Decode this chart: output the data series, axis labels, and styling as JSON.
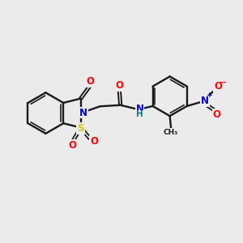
{
  "background_color": "#ebebeb",
  "bond_color": "#1a1a1a",
  "atom_colors": {
    "O": "#ff0000",
    "N": "#0000cc",
    "S": "#cccc00",
    "H": "#008080",
    "C": "#1a1a1a"
  },
  "figsize": [
    3.0,
    3.0
  ],
  "dpi": 100
}
